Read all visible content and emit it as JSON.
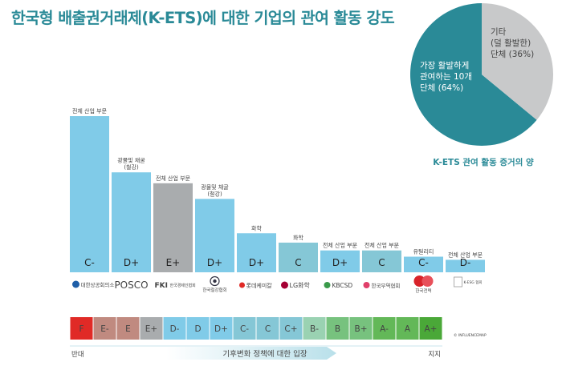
{
  "title": "한국형 배출권거래제(K-ETS)에 대한 기업의 관여 활동 강도",
  "chart_data": [
    {
      "type": "bar",
      "categories": [
        "대한상공회의소",
        "POSCO",
        "FKI 한국경제인협회",
        "한국철강협회",
        "롯데케미칼",
        "LG화학",
        "KBCSD",
        "한국무역협회",
        "한국전력",
        "K-ESG 협회"
      ],
      "series": [
        {
          "values": [
            100,
            64,
            57,
            47,
            25,
            19,
            14,
            14,
            10,
            8
          ],
          "grades": [
            "C-",
            "D+",
            "E+",
            "D+",
            "D+",
            "C",
            "D+",
            "C",
            "C-",
            "D-"
          ],
          "sectors": [
            "전체 산업 부문",
            "광물및 채굴\n(철강)",
            "전체 산업 부문",
            "광물및 채굴\n(철강)",
            "화학",
            "화학",
            "전체 산업 부문",
            "전체 산업 부문",
            "유틸리티",
            "전체 산업 부문"
          ]
        }
      ],
      "colors": [
        "#80cbe8",
        "#80cbe8",
        "#a9acae",
        "#80cbe8",
        "#80cbe8",
        "#85c7d6",
        "#80cbe8",
        "#85c7d6",
        "#80cbe8",
        "#80cbe8"
      ],
      "xlabel": "",
      "ylabel": ""
    },
    {
      "type": "pie",
      "title": "K-ETS 관여 활동 증거의 양",
      "slices": [
        {
          "label": "가장 활발하게\n관여하는 10개\n단체 (64%)",
          "value": 64,
          "color": "#2a8a97"
        },
        {
          "label": "기타\n(덜 활발한)\n단체 (36%)",
          "value": 36,
          "color": "#c8c9ca"
        }
      ]
    }
  ],
  "scale": {
    "grades": [
      "F",
      "E-",
      "E",
      "E+",
      "D-",
      "D",
      "D+",
      "C-",
      "C",
      "C+",
      "B-",
      "B",
      "B+",
      "A-",
      "A",
      "A+"
    ],
    "colors": [
      "#e02a26",
      "#c08a80",
      "#c08a80",
      "#a9acae",
      "#80cbe8",
      "#80cbe8",
      "#80cbe8",
      "#85c7d6",
      "#85c7d6",
      "#85c7d6",
      "#9ad2b2",
      "#77c27e",
      "#77c27e",
      "#63b858",
      "#63b858",
      "#4aa838"
    ],
    "left_label": "반대",
    "right_label": "지지",
    "center_label": "기후변화 정책에 대한 입장"
  },
  "credit": "© INFLUENCEMAP"
}
